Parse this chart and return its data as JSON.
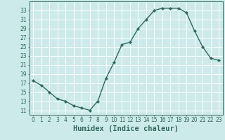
{
  "x": [
    0,
    1,
    2,
    3,
    4,
    5,
    6,
    7,
    8,
    9,
    10,
    11,
    12,
    13,
    14,
    15,
    16,
    17,
    18,
    19,
    20,
    21,
    22,
    23
  ],
  "y": [
    17.5,
    16.5,
    15,
    13.5,
    13,
    12,
    11.5,
    11,
    13,
    18,
    21.5,
    25.5,
    26,
    29,
    31,
    33,
    33.5,
    33.5,
    33.5,
    32.5,
    28.5,
    25,
    22.5,
    22
  ],
  "line_color": "#2d6b5e",
  "marker": "D",
  "marker_size": 2.2,
  "bg_color": "#cdeaea",
  "grid_color": "#ffffff",
  "xlabel": "Humidex (Indice chaleur)",
  "xlim": [
    -0.5,
    23.5
  ],
  "ylim": [
    10,
    35
  ],
  "yticks": [
    11,
    13,
    15,
    17,
    19,
    21,
    23,
    25,
    27,
    29,
    31,
    33
  ],
  "xticks": [
    0,
    1,
    2,
    3,
    4,
    5,
    6,
    7,
    8,
    9,
    10,
    11,
    12,
    13,
    14,
    15,
    16,
    17,
    18,
    19,
    20,
    21,
    22,
    23
  ],
  "xtick_labels": [
    "0",
    "1",
    "2",
    "3",
    "4",
    "5",
    "6",
    "7",
    "8",
    "9",
    "10",
    "11",
    "12",
    "13",
    "14",
    "15",
    "16",
    "17",
    "18",
    "19",
    "20",
    "21",
    "22",
    "23"
  ],
  "tick_color": "#2d6b5e",
  "xlabel_color": "#2d6b5e",
  "xlabel_fontsize": 7.5,
  "tick_fontsize": 5.5,
  "line_width": 1.0,
  "spine_color": "#2d6b5e"
}
